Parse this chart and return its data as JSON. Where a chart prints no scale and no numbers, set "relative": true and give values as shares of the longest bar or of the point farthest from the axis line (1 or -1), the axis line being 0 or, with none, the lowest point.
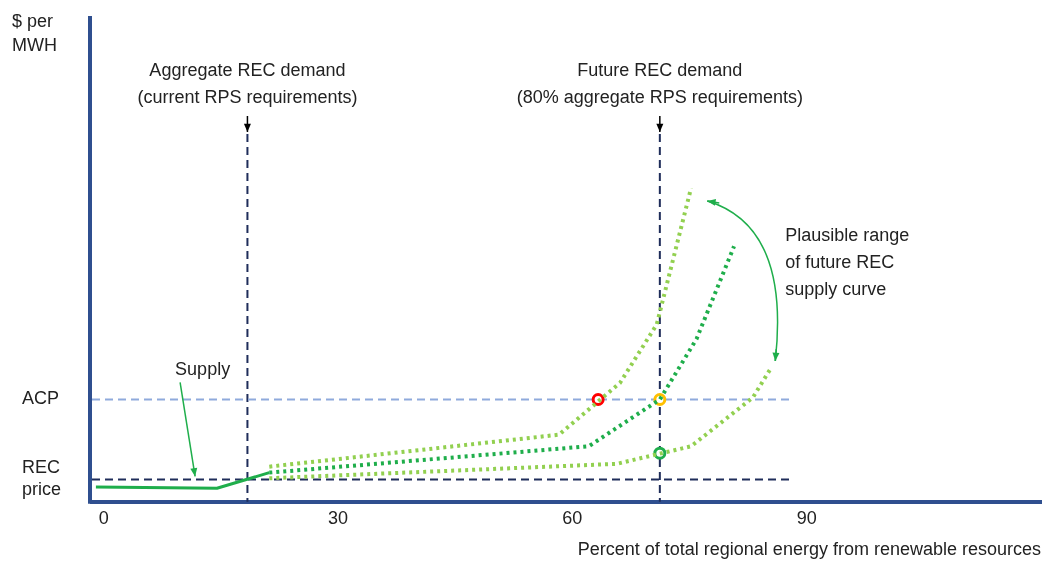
{
  "chart_data": {
    "type": "line",
    "relative": true,
    "xlabel": "Percent of total regional energy from renewable resources",
    "xlim": [
      -1.5,
      120
    ],
    "xticks": [
      0,
      30,
      60,
      90
    ],
    "grid": false,
    "legend": false,
    "series": [
      {
        "color": "#1fae4b",
        "line_style": "solid",
        "x": [
          -1,
          14.5,
          21.2
        ],
        "values": [
          0.047,
          0.043,
          0.093
        ]
      },
      {
        "color": "#92d050",
        "line_style": "dotted",
        "x": [
          21.2,
          58.3,
          66.1,
          70.8,
          75.2
        ],
        "values": [
          0.112,
          0.214,
          0.379,
          0.565,
          1
        ]
      },
      {
        "color": "#1fae4b",
        "line_style": "dotted",
        "x": [
          21.2,
          62.1,
          71.2,
          75.9,
          80.7
        ],
        "values": [
          0.093,
          0.177,
          0.326,
          0.519,
          0.814
        ]
      },
      {
        "color": "#92d050",
        "line_style": "dotted",
        "x": [
          21.2,
          65.7,
          75.2,
          83.1,
          85.4
        ],
        "values": [
          0.075,
          0.121,
          0.177,
          0.332,
          0.425
        ]
      },
      {
        "type": "scatter",
        "marker": "circle",
        "colors": [
          "#ff0000",
          "#ffc000",
          "#1fae4b"
        ],
        "x": [
          63.3,
          71.2,
          71.2
        ],
        "values": [
          0.326,
          0.326,
          0.155
        ]
      }
    ],
    "ref_lines": [
      {
        "axis": "x",
        "value": 18.4,
        "label": "Aggregate REC demand\n(current RPS requirements)",
        "color": "#1f2d5a",
        "line_style": "dashed"
      },
      {
        "axis": "x",
        "value": 71.2,
        "label": "Future REC demand\n(80% aggregate RPS requirements)",
        "color": "#1f2d5a",
        "line_style": "dashed"
      },
      {
        "axis": "y",
        "value": 0.326,
        "label": "ACP",
        "color": "#8faadc",
        "line_style": "dashed"
      },
      {
        "axis": "y",
        "value": 0.071,
        "label": "REC price",
        "color": "#1f2d5a",
        "line_style": "dashed"
      }
    ],
    "annotations": [
      "$ per MWH",
      {
        "text": "Supply",
        "x": 11.7,
        "y": 0.068
      },
      "Plausible range\nof future REC\nsupply curve"
    ]
  }
}
